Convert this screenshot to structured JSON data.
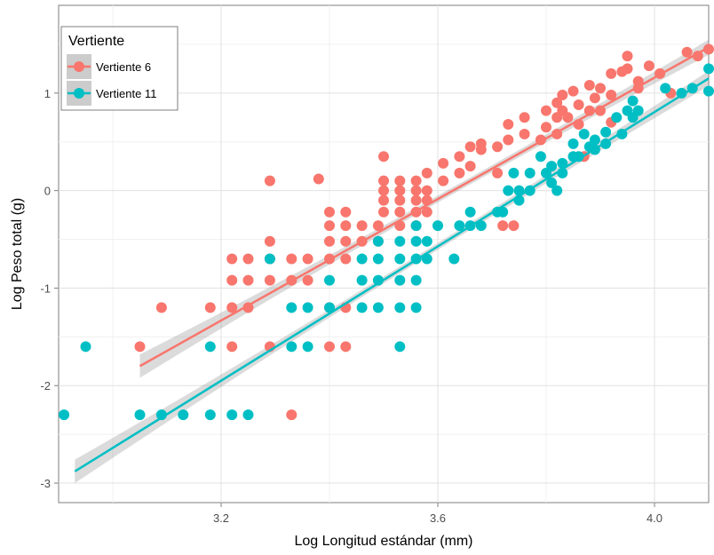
{
  "chart_data": {
    "type": "scatter",
    "title": "",
    "xlabel": "Log Longitud estándar (mm)",
    "ylabel": "Log Peso total (g)",
    "xlim": [
      2.9,
      4.1
    ],
    "ylim": [
      -3.2,
      1.9
    ],
    "xticks": [
      3.2,
      3.6,
      4.0
    ],
    "xtick_labels": [
      "3.2",
      "3.6",
      "4.0"
    ],
    "yticks": [
      -3,
      -2,
      -1,
      0,
      1
    ],
    "ytick_labels": [
      "-3",
      "-2",
      "-1",
      "0",
      "1"
    ],
    "grid": true,
    "legend": {
      "title": "Vertiente",
      "position": "top-left-inside"
    },
    "series": [
      {
        "name": "Vertiente 6",
        "color": "#f8766d",
        "fit_line": {
          "x": [
            3.05,
            4.1
          ],
          "y": [
            -1.8,
            1.47
          ],
          "ci_half_width": [
            0.12,
            0.09
          ]
        },
        "points": [
          [
            3.05,
            -1.6
          ],
          [
            3.09,
            -1.2
          ],
          [
            3.18,
            -1.2
          ],
          [
            3.22,
            -0.7
          ],
          [
            3.22,
            -0.92
          ],
          [
            3.22,
            -1.2
          ],
          [
            3.22,
            -1.6
          ],
          [
            3.25,
            -0.7
          ],
          [
            3.25,
            -0.92
          ],
          [
            3.25,
            -1.2
          ],
          [
            3.29,
            0.1
          ],
          [
            3.29,
            -0.52
          ],
          [
            3.29,
            -0.7
          ],
          [
            3.29,
            -0.92
          ],
          [
            3.29,
            -1.6
          ],
          [
            3.33,
            -0.7
          ],
          [
            3.33,
            -0.92
          ],
          [
            3.33,
            -2.3
          ],
          [
            3.36,
            -0.7
          ],
          [
            3.36,
            -0.92
          ],
          [
            3.38,
            0.12
          ],
          [
            3.4,
            -0.22
          ],
          [
            3.4,
            -0.36
          ],
          [
            3.4,
            -0.52
          ],
          [
            3.4,
            -0.7
          ],
          [
            3.4,
            -1.2
          ],
          [
            3.4,
            -1.6
          ],
          [
            3.43,
            -0.22
          ],
          [
            3.43,
            -0.36
          ],
          [
            3.43,
            -0.52
          ],
          [
            3.43,
            -0.7
          ],
          [
            3.43,
            -1.2
          ],
          [
            3.43,
            -1.6
          ],
          [
            3.46,
            -0.36
          ],
          [
            3.46,
            -0.52
          ],
          [
            3.49,
            -0.36
          ],
          [
            3.49,
            -0.52
          ],
          [
            3.5,
            0.35
          ],
          [
            3.5,
            0.0
          ],
          [
            3.5,
            0.1
          ],
          [
            3.5,
            -0.1
          ],
          [
            3.5,
            -0.22
          ],
          [
            3.53,
            0.0
          ],
          [
            3.53,
            0.1
          ],
          [
            3.53,
            -0.1
          ],
          [
            3.53,
            -0.22
          ],
          [
            3.53,
            -0.36
          ],
          [
            3.56,
            0.0
          ],
          [
            3.56,
            0.1
          ],
          [
            3.56,
            -0.1
          ],
          [
            3.56,
            -0.22
          ],
          [
            3.56,
            -0.36
          ],
          [
            3.58,
            0.0
          ],
          [
            3.58,
            0.18
          ],
          [
            3.58,
            -0.1
          ],
          [
            3.58,
            -0.22
          ],
          [
            3.61,
            0.1
          ],
          [
            3.61,
            0.28
          ],
          [
            3.64,
            0.18
          ],
          [
            3.64,
            0.35
          ],
          [
            3.66,
            0.45
          ],
          [
            3.66,
            0.25
          ],
          [
            3.68,
            0.48
          ],
          [
            3.68,
            0.42
          ],
          [
            3.71,
            0.45
          ],
          [
            3.71,
            0.18
          ],
          [
            3.72,
            -0.36
          ],
          [
            3.73,
            0.52
          ],
          [
            3.73,
            0.68
          ],
          [
            3.74,
            -0.36
          ],
          [
            3.76,
            0.58
          ],
          [
            3.76,
            0.75
          ],
          [
            3.79,
            0.52
          ],
          [
            3.8,
            0.82
          ],
          [
            3.8,
            0.65
          ],
          [
            3.82,
            0.9
          ],
          [
            3.82,
            0.75
          ],
          [
            3.82,
            0.58
          ],
          [
            3.83,
            0.98
          ],
          [
            3.83,
            0.82
          ],
          [
            3.84,
            0.75
          ],
          [
            3.85,
            1.02
          ],
          [
            3.86,
            0.88
          ],
          [
            3.86,
            0.68
          ],
          [
            3.87,
            0.35
          ],
          [
            3.88,
            1.08
          ],
          [
            3.88,
            0.82
          ],
          [
            3.89,
            0.95
          ],
          [
            3.9,
            1.05
          ],
          [
            3.9,
            0.82
          ],
          [
            3.92,
            1.2
          ],
          [
            3.92,
            0.98
          ],
          [
            3.92,
            0.7
          ],
          [
            3.94,
            1.22
          ],
          [
            3.95,
            1.38
          ],
          [
            3.95,
            1.25
          ],
          [
            3.97,
            1.12
          ],
          [
            3.97,
            1.05
          ],
          [
            3.99,
            1.28
          ],
          [
            4.01,
            1.2
          ],
          [
            4.03,
            1.0
          ],
          [
            4.06,
            1.42
          ],
          [
            4.08,
            1.38
          ],
          [
            4.1,
            1.45
          ]
        ]
      },
      {
        "name": "Vertiente 11",
        "color": "#00bfc4",
        "fit_line": {
          "x": [
            2.93,
            4.1
          ],
          "y": [
            -2.88,
            1.15
          ],
          "ci_half_width": [
            0.12,
            0.09
          ]
        },
        "points": [
          [
            2.91,
            -2.3
          ],
          [
            2.95,
            -1.6
          ],
          [
            3.05,
            -2.3
          ],
          [
            3.09,
            -2.3
          ],
          [
            3.13,
            -2.3
          ],
          [
            3.18,
            -2.3
          ],
          [
            3.22,
            -2.3
          ],
          [
            3.25,
            -2.3
          ],
          [
            3.18,
            -1.6
          ],
          [
            3.29,
            -0.7
          ],
          [
            3.33,
            -1.2
          ],
          [
            3.33,
            -1.6
          ],
          [
            3.36,
            -1.2
          ],
          [
            3.36,
            -1.6
          ],
          [
            3.4,
            -0.92
          ],
          [
            3.4,
            -1.2
          ],
          [
            3.46,
            -0.7
          ],
          [
            3.46,
            -0.92
          ],
          [
            3.46,
            -1.2
          ],
          [
            3.49,
            -0.52
          ],
          [
            3.49,
            -0.7
          ],
          [
            3.49,
            -0.92
          ],
          [
            3.49,
            -1.2
          ],
          [
            3.53,
            -0.52
          ],
          [
            3.53,
            -0.7
          ],
          [
            3.53,
            -0.92
          ],
          [
            3.53,
            -1.2
          ],
          [
            3.53,
            -1.6
          ],
          [
            3.56,
            -0.36
          ],
          [
            3.56,
            -0.52
          ],
          [
            3.56,
            -0.7
          ],
          [
            3.56,
            -0.92
          ],
          [
            3.56,
            -1.2
          ],
          [
            3.58,
            -0.52
          ],
          [
            3.58,
            -0.7
          ],
          [
            3.6,
            -0.36
          ],
          [
            3.63,
            -0.7
          ],
          [
            3.64,
            -0.36
          ],
          [
            3.66,
            -0.22
          ],
          [
            3.66,
            -0.36
          ],
          [
            3.68,
            -0.36
          ],
          [
            3.71,
            -0.22
          ],
          [
            3.72,
            -0.22
          ],
          [
            3.73,
            0.0
          ],
          [
            3.74,
            0.18
          ],
          [
            3.75,
            0.0
          ],
          [
            3.75,
            -0.1
          ],
          [
            3.77,
            0.18
          ],
          [
            3.77,
            0.0
          ],
          [
            3.79,
            0.35
          ],
          [
            3.8,
            0.18
          ],
          [
            3.81,
            0.25
          ],
          [
            3.81,
            0.08
          ],
          [
            3.82,
            0.0
          ],
          [
            3.83,
            0.28
          ],
          [
            3.83,
            0.18
          ],
          [
            3.85,
            0.48
          ],
          [
            3.85,
            0.35
          ],
          [
            3.86,
            0.35
          ],
          [
            3.87,
            0.58
          ],
          [
            3.88,
            0.45
          ],
          [
            3.89,
            0.52
          ],
          [
            3.89,
            0.42
          ],
          [
            3.91,
            0.6
          ],
          [
            3.91,
            0.48
          ],
          [
            3.93,
            0.75
          ],
          [
            3.94,
            0.58
          ],
          [
            3.95,
            0.82
          ],
          [
            3.96,
            0.92
          ],
          [
            3.96,
            0.75
          ],
          [
            3.97,
            0.82
          ],
          [
            4.02,
            1.05
          ],
          [
            4.05,
            1.0
          ],
          [
            4.07,
            1.05
          ],
          [
            4.1,
            1.25
          ],
          [
            4.1,
            1.02
          ]
        ]
      }
    ]
  }
}
